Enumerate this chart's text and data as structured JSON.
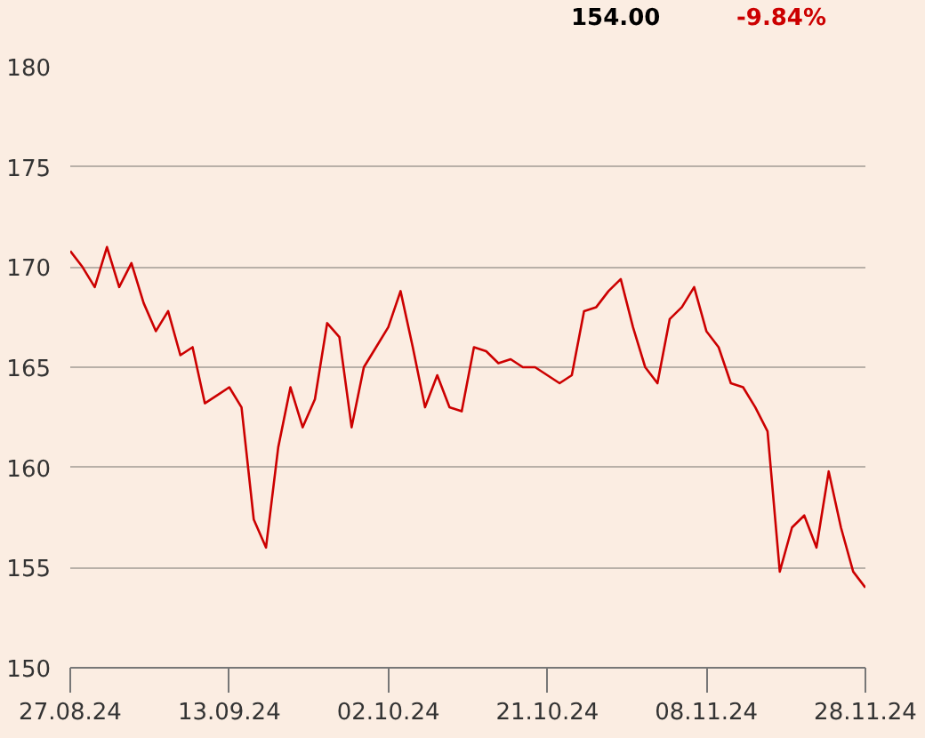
{
  "chart_data": {
    "type": "line",
    "annotations": [
      "154.00",
      "-9.84%"
    ],
    "categories": [
      "27.08.24",
      null,
      null,
      null,
      null,
      null,
      null,
      null,
      null,
      null,
      null,
      null,
      null,
      "13.09.24",
      null,
      null,
      null,
      null,
      null,
      null,
      null,
      null,
      null,
      null,
      null,
      null,
      "02.10.24",
      null,
      null,
      null,
      null,
      null,
      null,
      null,
      null,
      null,
      null,
      null,
      null,
      "21.10.24",
      null,
      null,
      null,
      null,
      null,
      null,
      null,
      null,
      null,
      null,
      null,
      null,
      "08.11.24",
      null,
      null,
      null,
      null,
      null,
      null,
      null,
      null,
      null,
      null,
      null,
      null,
      "28.11.24"
    ],
    "ylim": [
      150,
      180
    ],
    "yticks": [
      150,
      155,
      160,
      165,
      170,
      175,
      180
    ],
    "grid": "y",
    "series": [
      {
        "color": "#cc0000",
        "values": [
          170.8,
          170,
          169,
          171,
          169,
          170.2,
          168.2,
          166.8,
          167.8,
          165.6,
          166,
          163.2,
          163.6,
          164,
          163,
          157.4,
          156,
          161,
          164,
          162,
          163.4,
          167.2,
          166.5,
          162,
          165,
          166,
          167,
          168.8,
          166,
          163,
          164.6,
          163,
          162.8,
          166,
          165.8,
          165.2,
          165.4,
          165,
          165,
          164.6,
          164.2,
          164.6,
          167.8,
          168,
          168.8,
          169.4,
          167,
          165,
          164.2,
          167.4,
          168,
          169,
          166.8,
          166,
          164.2,
          164,
          163,
          161.8,
          154.8,
          157,
          157.6,
          156,
          159.8,
          157,
          154.8,
          154
        ]
      }
    ]
  }
}
